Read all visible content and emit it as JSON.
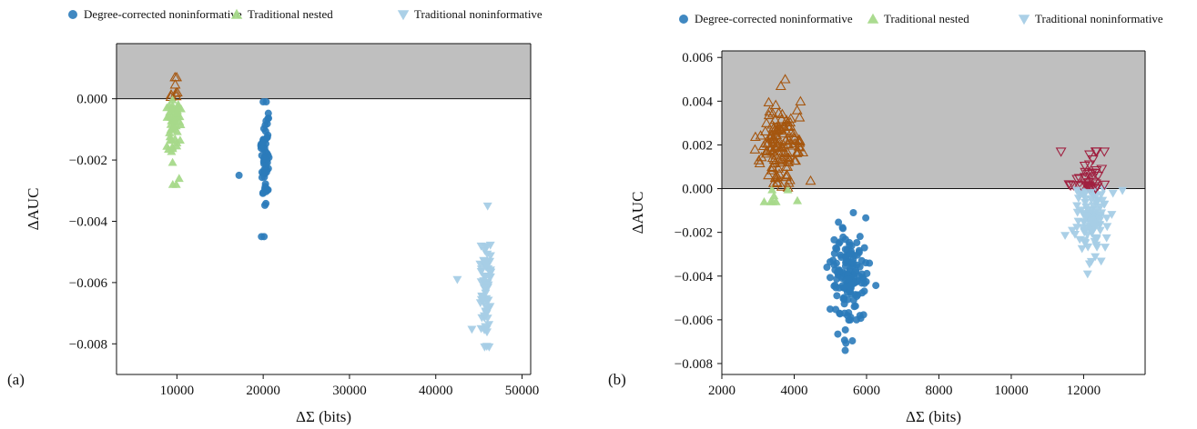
{
  "colors": {
    "degree_corrected": "#2b7bba",
    "traditional_nested": "#a6d98a",
    "traditional_noninformative": "#a6cde6",
    "nested_above_zero": "#a5560f",
    "noninformative_above_zero": "#a02040",
    "shade": "#bfbfbf"
  },
  "chart_data": [
    {
      "type": "scatter",
      "panel_label": "(a)",
      "xlabel": "ΔΣ (bits)",
      "ylabel": "ΔAUC",
      "xlim": [
        3000,
        51000
      ],
      "ylim": [
        -0.009,
        0.0018
      ],
      "x_ticks": [
        10000,
        20000,
        30000,
        40000,
        50000
      ],
      "x_tick_labels": [
        "10000",
        "20000",
        "30000",
        "40000",
        "50000"
      ],
      "y_ticks": [
        0.0,
        -0.002,
        -0.004,
        -0.006,
        -0.008
      ],
      "y_tick_labels": [
        "0.000",
        "−0.002",
        "−0.004",
        "−0.006",
        "−0.008"
      ],
      "shaded_region": "y > 0",
      "legend": [
        "Degree-corrected noninformative",
        "Traditional nested",
        "Traditional noninformative"
      ],
      "legend_placement": "above plot",
      "series": [
        {
          "name": "Degree-corrected noninformative",
          "marker": "circle",
          "count": 60,
          "x_center": 20200,
          "x_spread": 500,
          "y_mean": -0.0018,
          "y_min": -0.0045,
          "y_max": -0.0001,
          "outliers": [
            [
              17200,
              -0.0025
            ],
            [
              19800,
              -0.0045
            ]
          ]
        },
        {
          "name": "Traditional nested",
          "marker": "triangle-up",
          "count": 60,
          "x_center": 9700,
          "x_spread": 900,
          "y_mean": -0.0008,
          "y_min": -0.0028,
          "y_max": 0.0007
        },
        {
          "name": "Traditional noninformative",
          "marker": "triangle-down",
          "count": 70,
          "x_center": 45800,
          "x_spread": 700,
          "y_mean": -0.0061,
          "y_min": -0.0081,
          "y_max": -0.0035,
          "outliers": [
            [
              42500,
              -0.0059
            ]
          ]
        }
      ]
    },
    {
      "type": "scatter",
      "panel_label": "(b)",
      "xlabel": "ΔΣ (bits)",
      "ylabel": "ΔAUC",
      "xlim": [
        2000,
        13700
      ],
      "ylim": [
        -0.0085,
        0.0063
      ],
      "x_ticks": [
        2000,
        4000,
        6000,
        8000,
        10000,
        12000
      ],
      "x_tick_labels": [
        "2000",
        "4000",
        "6000",
        "8000",
        "10000",
        "12000"
      ],
      "y_ticks": [
        0.006,
        0.004,
        0.002,
        0.0,
        -0.002,
        -0.004,
        -0.006,
        -0.008
      ],
      "y_tick_labels": [
        "0.006",
        "0.004",
        "0.002",
        "0.000",
        "−0.002",
        "−0.004",
        "−0.006",
        "−0.008"
      ],
      "shaded_region": "y > 0",
      "legend": [
        "Degree-corrected noninformative",
        "Traditional nested",
        "Traditional noninformative"
      ],
      "legend_placement": "above plot",
      "series": [
        {
          "name": "Degree-corrected noninformative",
          "marker": "circle",
          "count": 150,
          "x_center": 5500,
          "x_spread": 450,
          "y_mean": -0.0041,
          "y_min": -0.0074,
          "y_max": -0.0011
        },
        {
          "name": "Traditional nested",
          "marker": "triangle-up",
          "count": 150,
          "x_center": 3600,
          "x_spread": 500,
          "y_mean": 0.0018,
          "y_min": -0.0006,
          "y_max": 0.005
        },
        {
          "name": "Traditional noninformative",
          "marker": "triangle-down",
          "count": 150,
          "x_center": 12200,
          "x_spread": 450,
          "y_mean": -0.0008,
          "y_min": -0.0039,
          "y_max": 0.0017
        }
      ]
    }
  ]
}
